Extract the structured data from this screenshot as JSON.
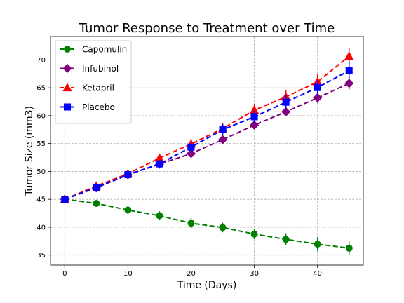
{
  "chart_data": {
    "type": "line",
    "title": "Tumor Response to Treatment over Time",
    "xlabel": "Time (Days)",
    "ylabel": "Tumor Size (mm3)",
    "xlim": [
      -2.25,
      47.25
    ],
    "ylim": [
      33.2,
      74.2
    ],
    "xticks": [
      0,
      10,
      20,
      30,
      40
    ],
    "yticks": [
      35,
      40,
      45,
      50,
      55,
      60,
      65,
      70
    ],
    "grid": true,
    "legend_position": "top-left",
    "x": [
      0,
      5,
      10,
      15,
      20,
      25,
      30,
      35,
      40,
      45
    ],
    "series": [
      {
        "name": "Capomulin",
        "color": "#008000",
        "marker": "circle",
        "values": [
          45.0,
          44.27,
          43.08,
          42.06,
          40.72,
          39.94,
          38.77,
          37.82,
          36.96,
          36.24
        ],
        "errors": [
          0.0,
          0.45,
          0.7,
          0.8,
          0.9,
          0.85,
          0.95,
          1.1,
          1.2,
          1.2
        ]
      },
      {
        "name": "Infubinol",
        "color": "#800080",
        "marker": "diamond",
        "values": [
          45.0,
          47.06,
          49.4,
          51.3,
          53.2,
          55.7,
          58.3,
          60.7,
          63.2,
          65.8
        ],
        "errors": [
          0.0,
          0.25,
          0.5,
          0.6,
          0.7,
          0.6,
          0.7,
          0.8,
          0.9,
          1.1
        ]
      },
      {
        "name": "Ketapril",
        "color": "#ff0000",
        "marker": "triangle",
        "values": [
          45.0,
          47.39,
          49.58,
          52.4,
          54.92,
          57.68,
          60.99,
          63.37,
          66.07,
          70.66
        ],
        "errors": [
          0.0,
          0.3,
          0.6,
          0.8,
          0.9,
          1.0,
          1.1,
          1.2,
          1.3,
          1.5
        ]
      },
      {
        "name": "Placebo",
        "color": "#0000ff",
        "marker": "square",
        "values": [
          45.0,
          47.13,
          49.42,
          51.36,
          54.36,
          57.48,
          59.81,
          62.42,
          65.05,
          68.08
        ],
        "errors": [
          0.0,
          0.2,
          0.4,
          0.6,
          0.8,
          1.0,
          1.1,
          1.2,
          1.3,
          1.5
        ]
      }
    ]
  }
}
